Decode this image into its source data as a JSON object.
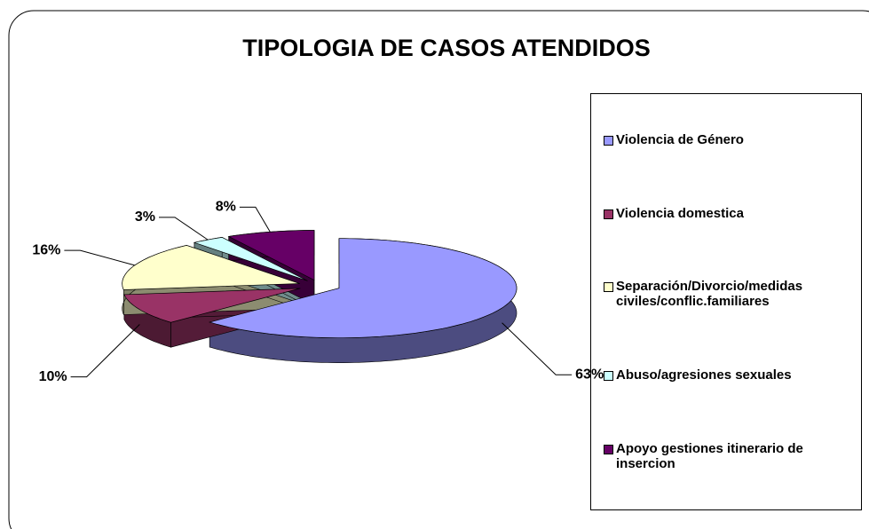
{
  "chart_data": {
    "type": "pie3d",
    "title": "TIPOLOGIA DE CASOS ATENDIDOS",
    "categories": [
      "Violencia de Género",
      "Violencia  domestica",
      "Separación/Divorcio/medidas civiles/conflic.familiares",
      "Abuso/agresiones sexuales",
      "Apoyo gestiones itinerario de insercion"
    ],
    "values": [
      63,
      10,
      16,
      3,
      8
    ],
    "value_labels": [
      "63%",
      "10%",
      "16%",
      "3%",
      "8%"
    ],
    "colors": [
      "#9999ff",
      "#993366",
      "#ffffcc",
      "#ccffff",
      "#660066"
    ],
    "legend": "right"
  }
}
